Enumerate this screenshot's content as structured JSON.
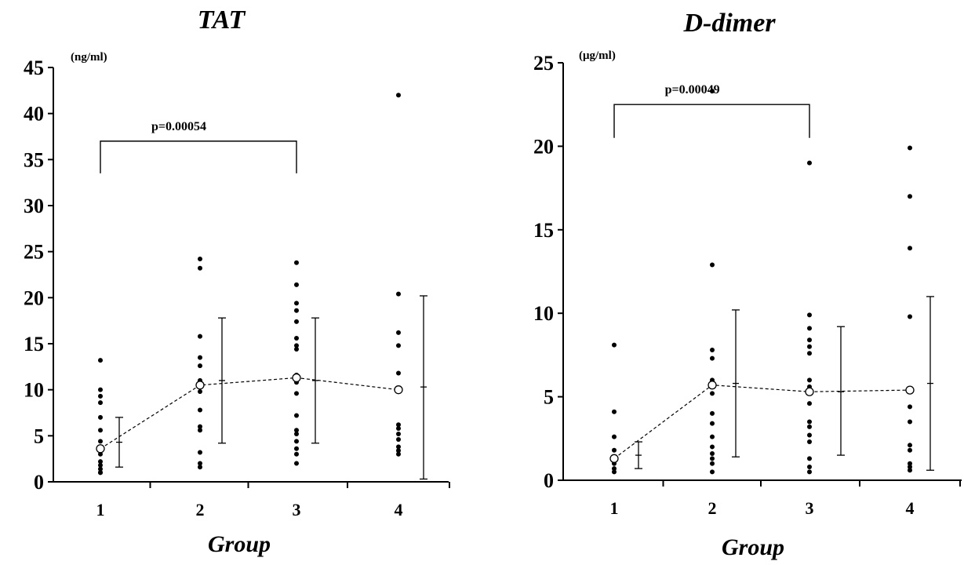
{
  "chart_data": [
    {
      "type": "scatter",
      "title": "TAT",
      "ylabel_unit": "(ng/ml)",
      "xlabel": "Group",
      "ylim": [
        0,
        45
      ],
      "yticks": [
        0,
        5,
        10,
        15,
        20,
        25,
        30,
        35,
        40,
        45
      ],
      "categories": [
        "1",
        "2",
        "3",
        "4"
      ],
      "points": [
        [
          1.0,
          3.0,
          2.2,
          1.8,
          1.4,
          1.0,
          4.4,
          5.6,
          7.0,
          8.6,
          9.3,
          10.0,
          13.2
        ],
        [
          1.6,
          2.0,
          3.2,
          5.6,
          6.0,
          7.8,
          9.8,
          10.4,
          11.0,
          12.6,
          13.5,
          15.8,
          23.2,
          24.2
        ],
        [
          2.0,
          3.0,
          3.6,
          4.4,
          5.2,
          5.6,
          7.2,
          9.6,
          10.8,
          11.6,
          14.4,
          14.8,
          15.6,
          17.4,
          18.6,
          19.4,
          21.4,
          23.8
        ],
        [
          3.0,
          3.4,
          3.8,
          4.6,
          5.2,
          5.8,
          6.2,
          11.8,
          14.8,
          16.2,
          20.4,
          42.0
        ]
      ],
      "mean": [
        3.6,
        10.5,
        11.3,
        10.0
      ],
      "errorbars": [
        {
          "center": 4.3,
          "low": 1.6,
          "high": 7.0
        },
        {
          "center": 11.0,
          "low": 4.2,
          "high": 17.8
        },
        {
          "center": 11.0,
          "low": 4.2,
          "high": 17.8
        },
        {
          "center": 10.3,
          "low": 0.3,
          "high": 20.2
        }
      ],
      "significance": {
        "from": "1",
        "to": "3",
        "label": "p=0.00054",
        "y": 37.0,
        "leg_bottom": 33.5
      }
    },
    {
      "type": "scatter",
      "title": "D-dimer",
      "ylabel_unit": "(μg/ml)",
      "xlabel": "Group",
      "ylim": [
        0,
        25
      ],
      "yticks": [
        0,
        5,
        10,
        15,
        20,
        25
      ],
      "categories": [
        "1",
        "2",
        "3",
        "4"
      ],
      "points": [
        [
          0.5,
          0.7,
          1.0,
          1.4,
          1.8,
          2.6,
          4.1,
          8.1
        ],
        [
          0.5,
          1.0,
          1.3,
          1.6,
          2.0,
          2.6,
          3.4,
          4.0,
          5.2,
          6.0,
          7.3,
          7.8,
          12.9,
          23.3
        ],
        [
          0.5,
          0.8,
          1.3,
          2.3,
          2.7,
          3.2,
          3.5,
          4.6,
          5.3,
          5.6,
          6.0,
          7.6,
          8.0,
          8.4,
          9.1,
          9.9,
          19.0
        ],
        [
          0.6,
          0.8,
          1.0,
          1.8,
          2.1,
          3.5,
          4.4,
          9.8,
          13.9,
          17.0,
          19.9
        ]
      ],
      "mean": [
        1.3,
        5.7,
        5.3,
        5.4
      ],
      "errorbars": [
        {
          "center": 1.5,
          "low": 0.7,
          "high": 2.3
        },
        {
          "center": 5.8,
          "low": 1.4,
          "high": 10.2
        },
        {
          "center": 5.3,
          "low": 1.5,
          "high": 9.2
        },
        {
          "center": 5.8,
          "low": 0.6,
          "high": 11.0
        }
      ],
      "significance": {
        "from": "1",
        "to": "3",
        "label": "p=0.00049",
        "y": 22.5,
        "leg_bottom": 20.5
      }
    }
  ]
}
